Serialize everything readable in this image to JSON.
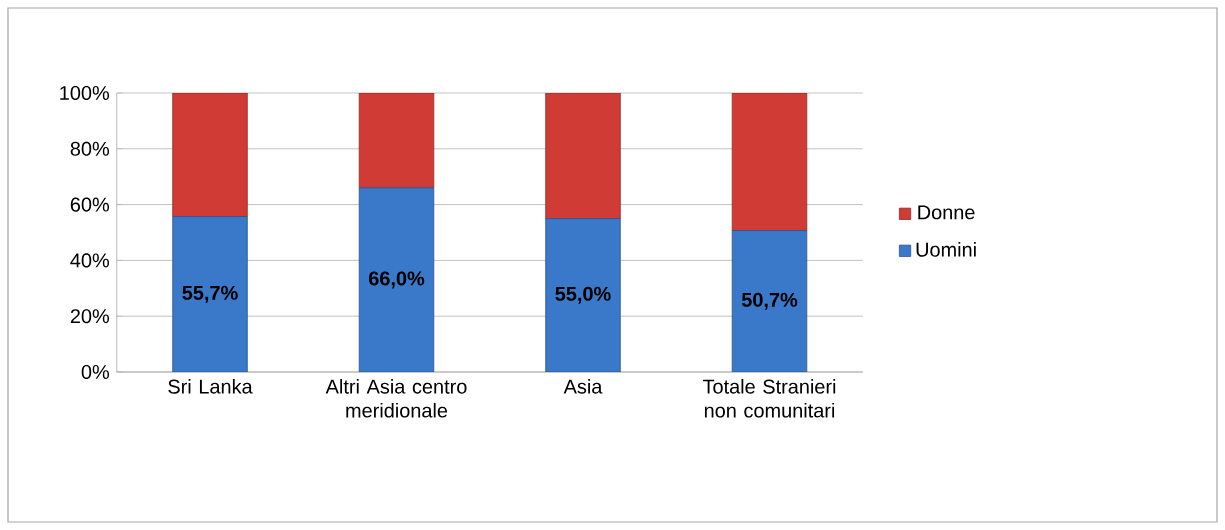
{
  "chart_data": {
    "type": "bar",
    "stacked": true,
    "categories": [
      "Sri Lanka",
      "Altri Asia centro meridionale",
      "Asia",
      "Totale Stranieri non comunitari"
    ],
    "series": [
      {
        "name": "Uomini",
        "color": "#3a78c9",
        "values": [
          55.7,
          66.0,
          55.0,
          50.7
        ],
        "value_labels": [
          "55,7%",
          "66,0%",
          "55,0%",
          "50,7%"
        ]
      },
      {
        "name": "Donne",
        "color": "#d13b36",
        "values": [
          44.3,
          34.0,
          45.0,
          49.3
        ]
      }
    ],
    "ylim": [
      0,
      100
    ],
    "yticks": [
      {
        "value": 0,
        "label": "0%"
      },
      {
        "value": 20,
        "label": "20%"
      },
      {
        "value": 40,
        "label": "40%"
      },
      {
        "value": 60,
        "label": "60%"
      },
      {
        "value": 80,
        "label": "80%"
      },
      {
        "value": 100,
        "label": "100%"
      }
    ],
    "grid": "y",
    "legend": "right"
  }
}
